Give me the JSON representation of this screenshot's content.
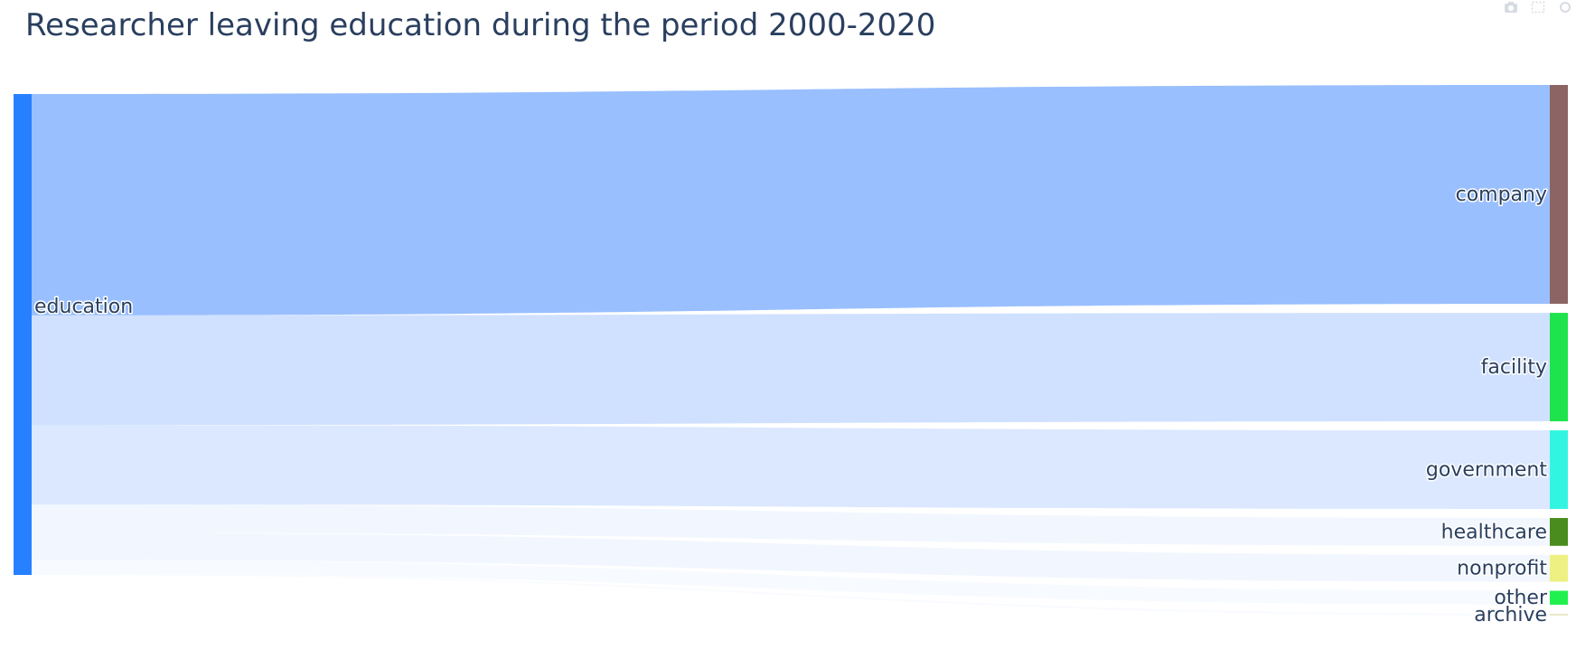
{
  "chart_data": {
    "type": "sankey",
    "title": "Researcher leaving education during the period 2000-2020",
    "source_node": {
      "label": "education",
      "color": "#2780ff"
    },
    "target_nodes": [
      {
        "label": "company",
        "color": "#8c6464"
      },
      {
        "label": "facility",
        "color": "#1ee34c"
      },
      {
        "label": "government",
        "color": "#32f5e1"
      },
      {
        "label": "healthcare",
        "color": "#4b8c1e"
      },
      {
        "label": "nonprofit",
        "color": "#eef082"
      },
      {
        "label": "other",
        "color": "#21f04e"
      },
      {
        "label": "archive",
        "color": "#e8e8c8"
      }
    ],
    "links": [
      {
        "source": "education",
        "target": "company",
        "value": 220,
        "color": "rgba(39,120,255,0.47)"
      },
      {
        "source": "education",
        "target": "facility",
        "value": 109,
        "color": "rgba(39,120,255,0.22)"
      },
      {
        "source": "education",
        "target": "government",
        "value": 79,
        "color": "rgba(39,120,255,0.17)"
      },
      {
        "source": "education",
        "target": "healthcare",
        "value": 28,
        "color": "rgba(39,120,255,0.06)"
      },
      {
        "source": "education",
        "target": "nonprofit",
        "value": 27,
        "color": "rgba(39,120,255,0.06)"
      },
      {
        "source": "education",
        "target": "other",
        "value": 14,
        "color": "rgba(39,120,255,0.04)"
      },
      {
        "source": "education",
        "target": "archive",
        "value": 1,
        "color": "rgba(39,120,255,0.03)"
      }
    ]
  },
  "modebar": {
    "icons": [
      "camera-icon",
      "zoom-box-icon",
      "pan-icon"
    ]
  }
}
